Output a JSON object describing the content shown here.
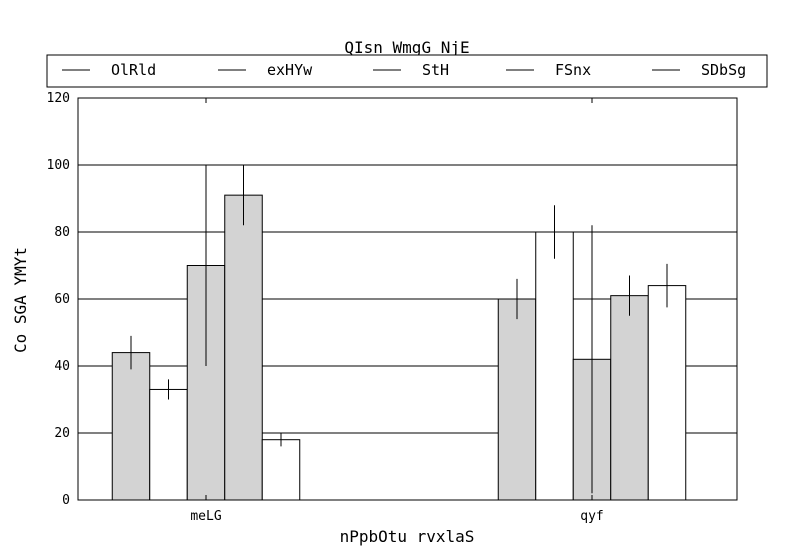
{
  "chart_data": {
    "type": "bar",
    "title": "QIsn WmgG NjE",
    "xlabel": "nPpbOtu rvxlaS",
    "ylabel": "Co SGA YMYt",
    "ylim": [
      0,
      120
    ],
    "yticks": [
      0,
      20,
      40,
      60,
      80,
      100,
      120
    ],
    "grid": true,
    "legend_position": "top",
    "categories": [
      "meLG",
      "qyf"
    ],
    "series": [
      {
        "name": "OlRld",
        "values": [
          44,
          60
        ],
        "errors": [
          5,
          6
        ],
        "color": "#d3d3d3"
      },
      {
        "name": "exHYw",
        "values": [
          33,
          80
        ],
        "errors": [
          3,
          8
        ],
        "color": "#ffffff"
      },
      {
        "name": "StH",
        "values": [
          70,
          42
        ],
        "errors": [
          30,
          40
        ],
        "color": "#d3d3d3"
      },
      {
        "name": "FSnx",
        "values": [
          91,
          61
        ],
        "errors": [
          9,
          6
        ],
        "color": "#d3d3d3"
      },
      {
        "name": "SDbSg",
        "values": [
          18,
          64
        ],
        "errors": [
          2,
          6.5
        ],
        "color": "#ffffff"
      }
    ]
  }
}
